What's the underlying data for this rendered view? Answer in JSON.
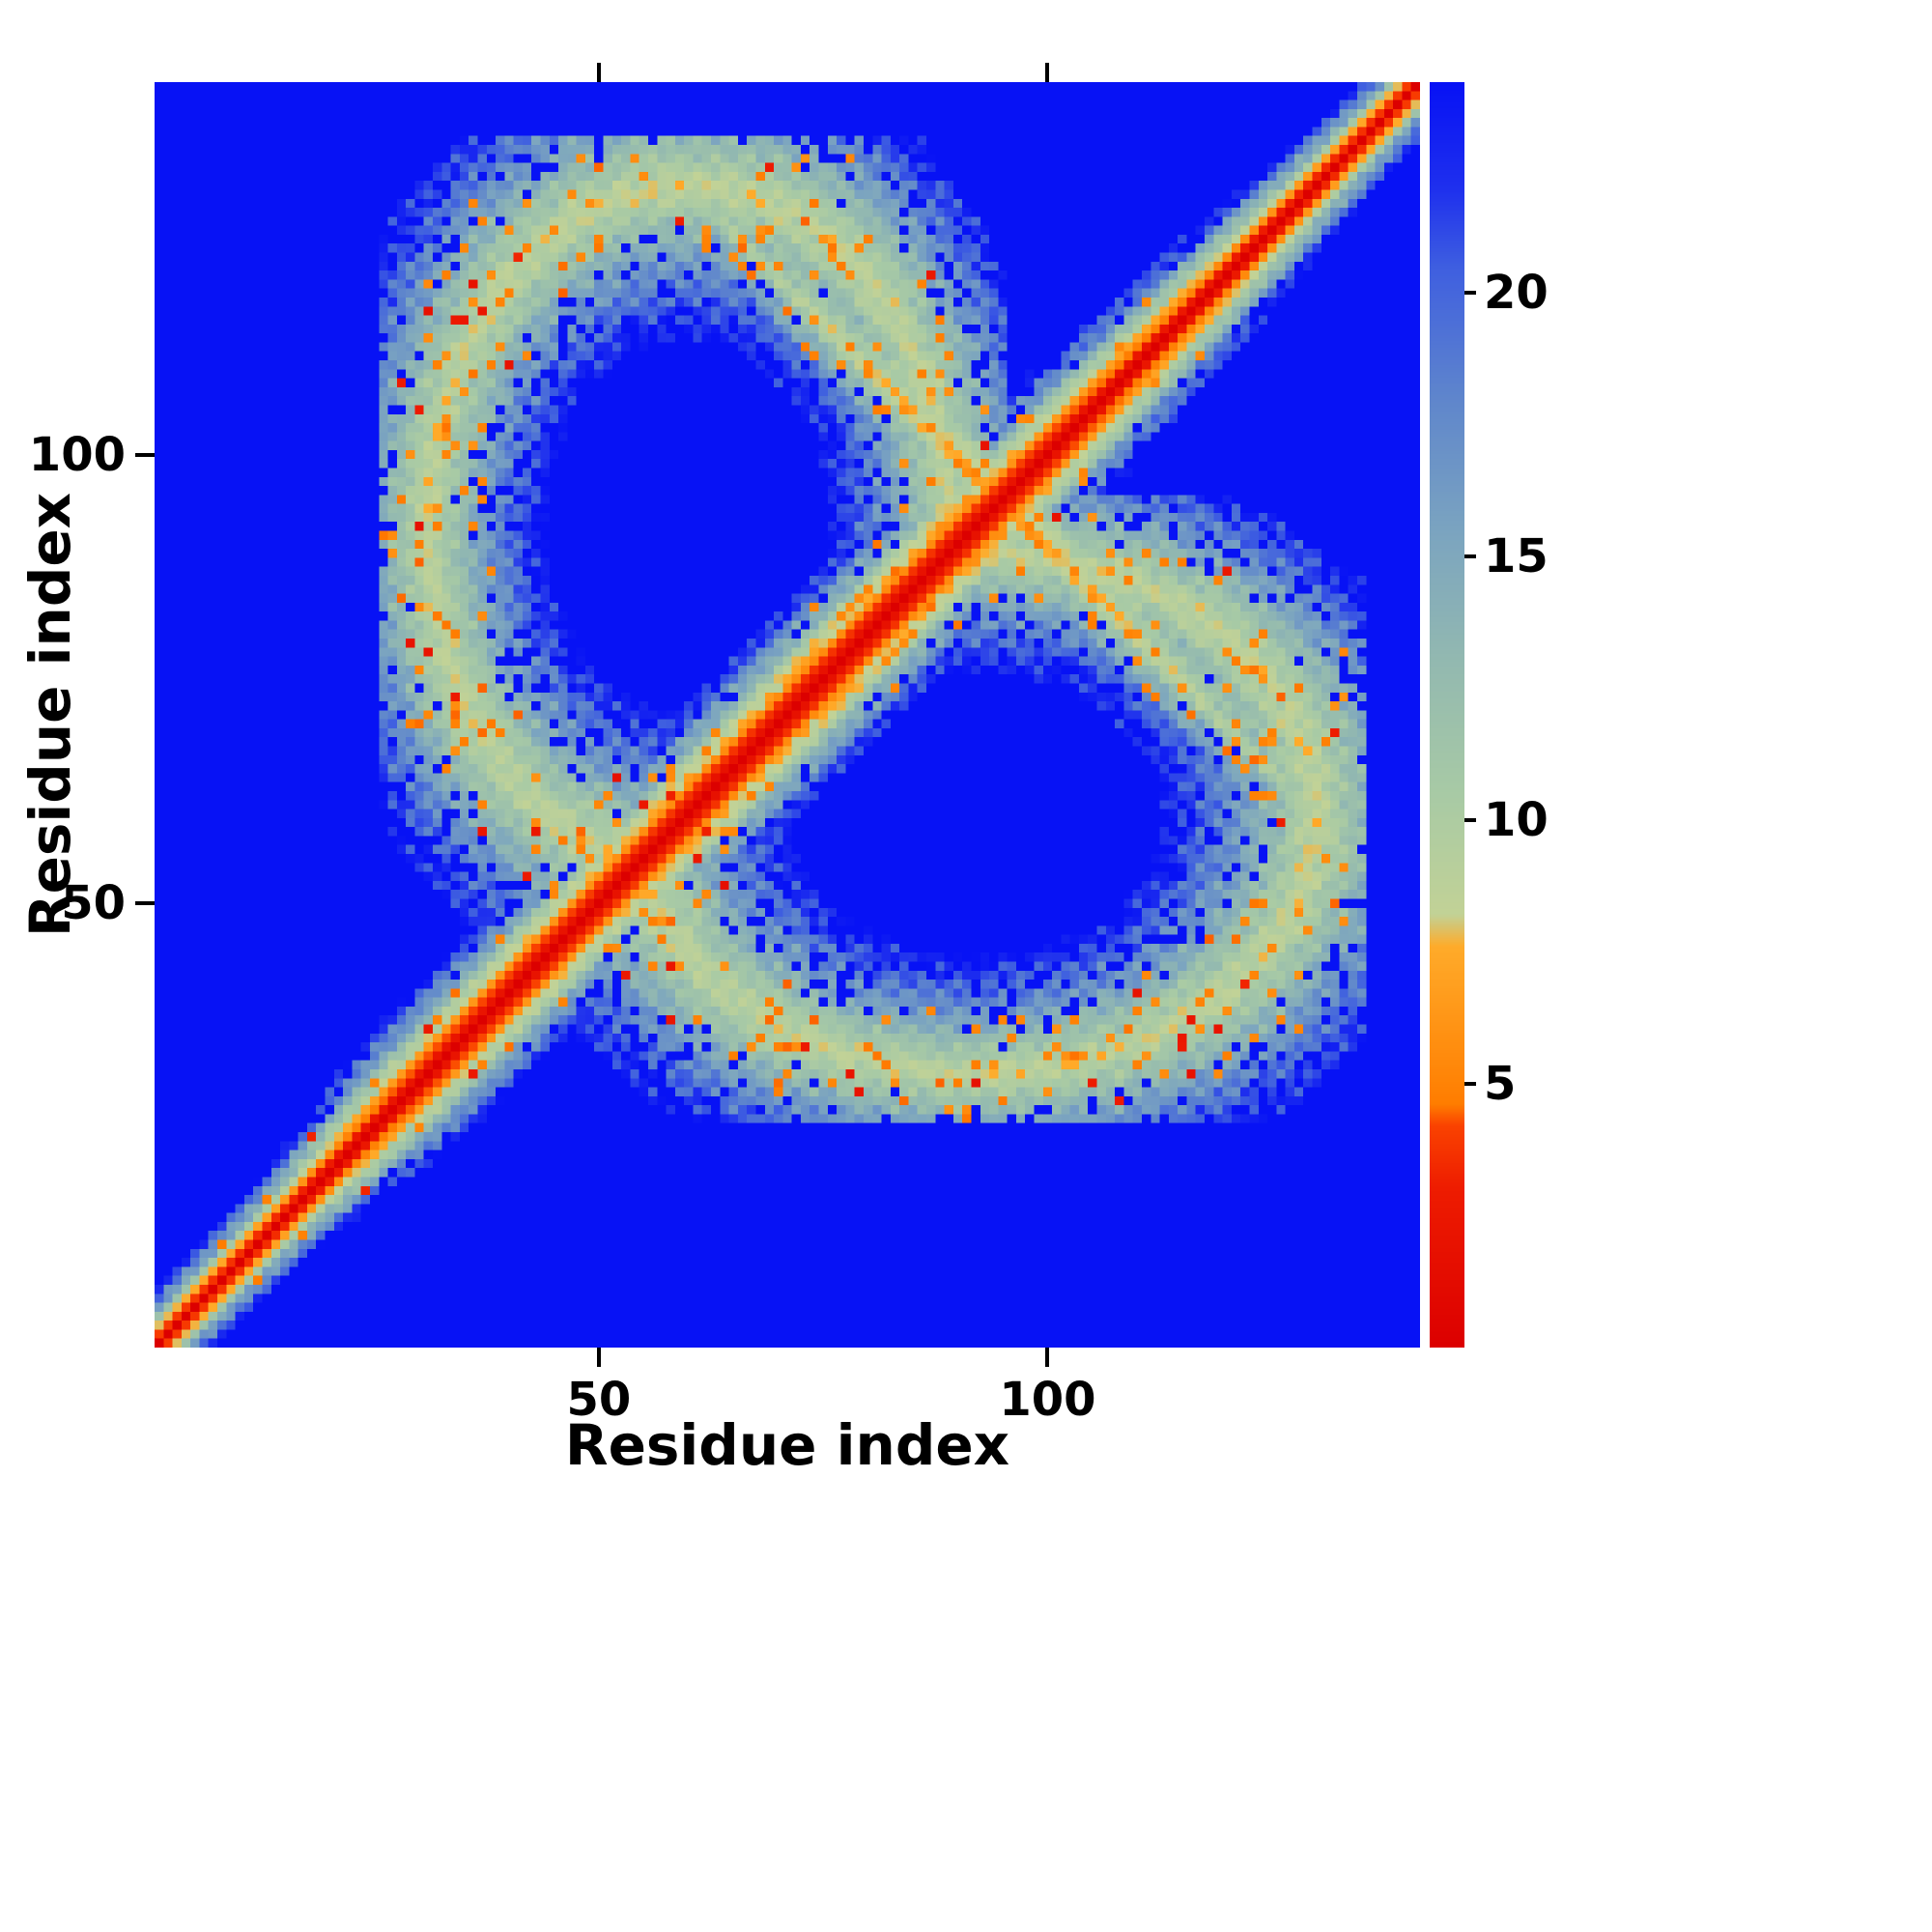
{
  "figure": {
    "background": "#ffffff"
  },
  "chart_data": {
    "type": "heatmap",
    "title": "",
    "xlabel": "Residue index",
    "ylabel": "Residue index",
    "n_residues": 141,
    "x_ticks": [
      50,
      100
    ],
    "y_ticks": [
      50,
      100
    ],
    "value_range": [
      0,
      24
    ],
    "colorbar_ticks": [
      5,
      10,
      15,
      20
    ],
    "grid": false,
    "legend": "colorbar-right",
    "background_value_color": "#0712f5",
    "colormap_stops": [
      [
        0,
        "#dc0000"
      ],
      [
        3.0,
        "#ee1c00"
      ],
      [
        4.2,
        "#fa4300"
      ],
      [
        4.6,
        "#ff7d00"
      ],
      [
        7.6,
        "#ffab2a"
      ],
      [
        8.2,
        "#c2d296"
      ],
      [
        10.5,
        "#a8caa5"
      ],
      [
        13.0,
        "#93b9b0"
      ],
      [
        15.5,
        "#7ba4c0"
      ],
      [
        18.0,
        "#5f86cc"
      ],
      [
        20.5,
        "#3f5fe0"
      ],
      [
        22.0,
        "#1f30ee"
      ],
      [
        24.0,
        "#0712f5"
      ]
    ],
    "matrix_model": {
      "description": "Symmetric residue-residue distance map: red self-contact diagonal with orange/green halo of varying width, an antiparallel hairpin band crossing the diagonal near residue 95, and an elliptical ring of contacts between segments ~30-90 and ~50-130 (mirrored across the diagonal); distances clipped to blue above 24.",
      "diag_halfwidth": [
        [
          1,
          6
        ],
        [
          15,
          7
        ],
        [
          28,
          11
        ],
        [
          50,
          12
        ],
        [
          62,
          13
        ],
        [
          90,
          13
        ],
        [
          104,
          11
        ],
        [
          120,
          9
        ],
        [
          132,
          7
        ],
        [
          141,
          6
        ]
      ],
      "hairpin": {
        "center": 95,
        "i_min": 60,
        "i_max": 95,
        "t_max": 66,
        "base": 6,
        "s_slope": 1.5,
        "t_slope": 0.07
      },
      "ring": {
        "cx": 60,
        "cy": 92,
        "rx": 29,
        "ry": 38,
        "base": 8.5,
        "slope": 34,
        "i_range": [
          26,
          95
        ],
        "j_range": [
          48,
          135
        ]
      },
      "texture": {
        "period": 3.6,
        "amplitude": 0.13
      },
      "speckle": {
        "orange_p": 0.07,
        "orange_value": 5.2,
        "red_p": 0.012,
        "red_value": 2.5,
        "dropout_p": 0.18,
        "jitter": 1.6
      }
    }
  }
}
